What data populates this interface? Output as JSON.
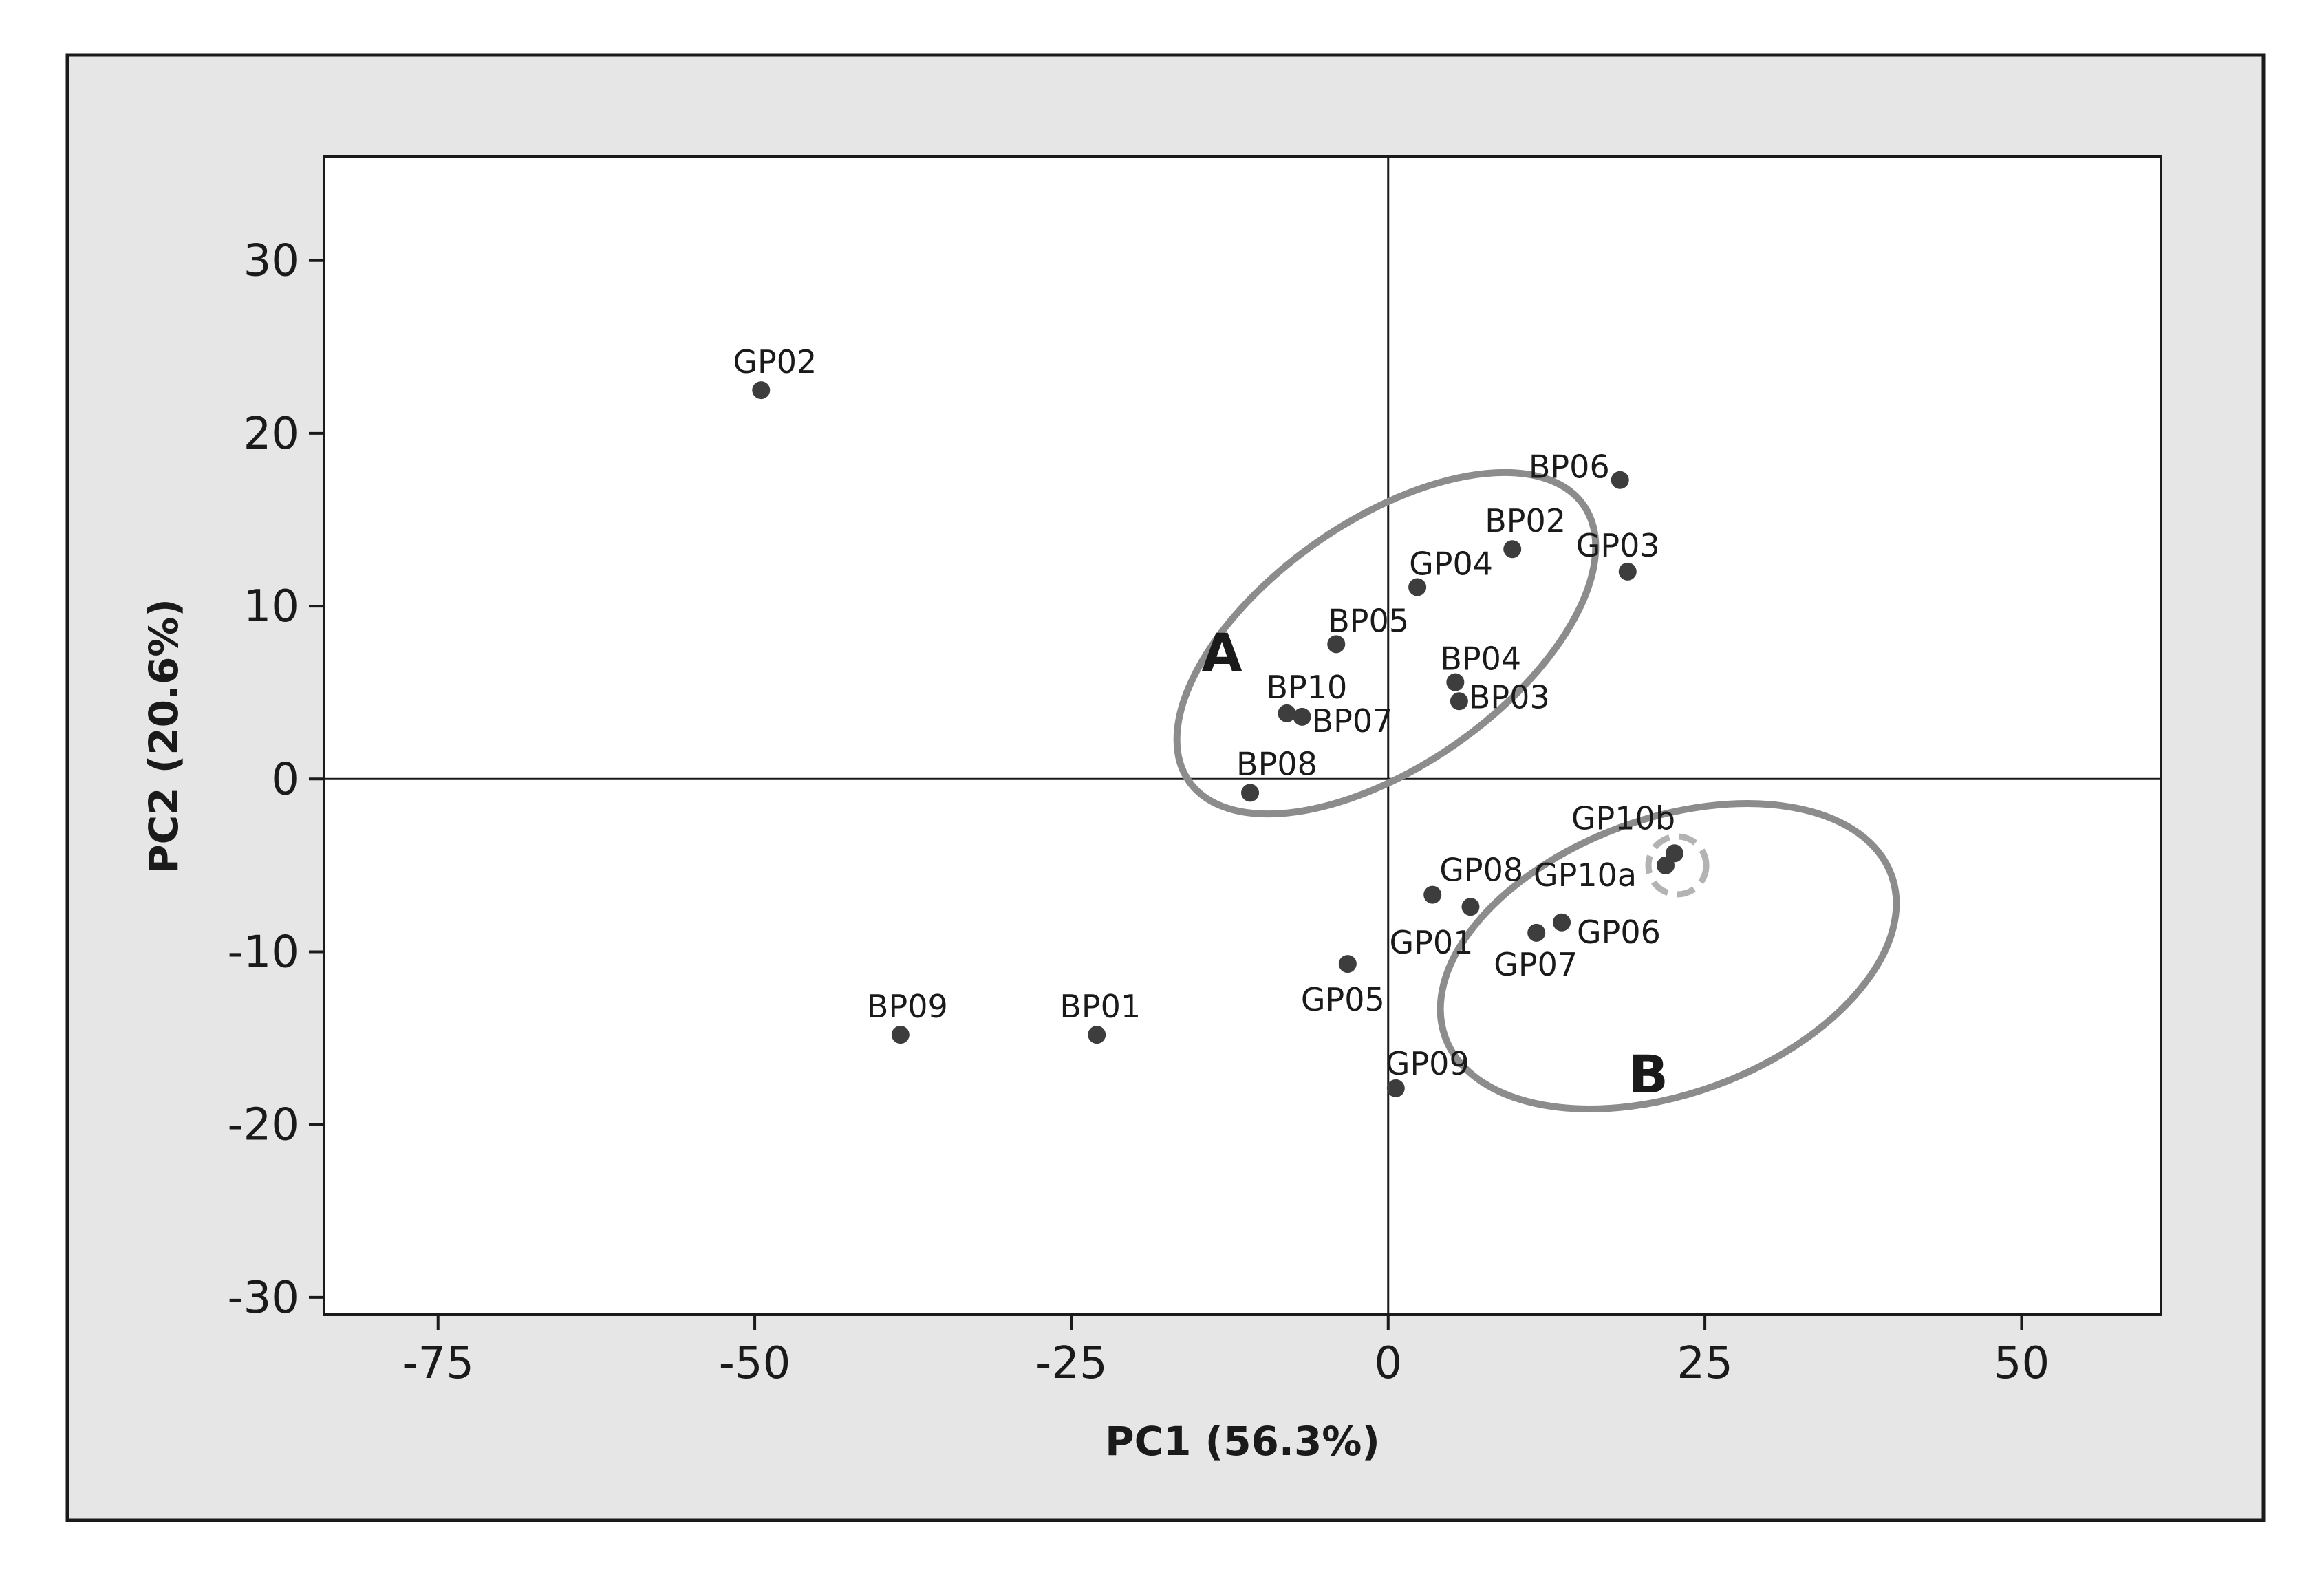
{
  "chart_data": {
    "type": "scatter",
    "title": "",
    "xlabel": "PC1 (56.3%)",
    "ylabel": "PC2 (20.6%)",
    "xlim": [
      -84,
      61
    ],
    "ylim": [
      -31,
      36
    ],
    "xticks": [
      -75,
      -50,
      -25,
      0,
      25,
      50
    ],
    "yticks": [
      -30,
      -20,
      -10,
      0,
      10,
      20,
      30
    ],
    "xtick_labels": [
      "-75",
      "-50",
      "-25",
      "0",
      "25",
      "50"
    ],
    "ytick_labels": [
      "-30",
      "-20",
      "-10",
      "0",
      "10",
      "20",
      "30"
    ],
    "reference_lines": {
      "x": 0,
      "y": 0
    },
    "grid": false,
    "points": [
      {
        "label": "GP02",
        "x": -49.5,
        "y": 22.5
      },
      {
        "label": "BP09",
        "x": -38.5,
        "y": -14.8
      },
      {
        "label": "BP01",
        "x": -23,
        "y": -14.8
      },
      {
        "label": "BP06",
        "x": 18.3,
        "y": 17.3
      },
      {
        "label": "BP02",
        "x": 9.8,
        "y": 13.3
      },
      {
        "label": "GP03",
        "x": 18.9,
        "y": 12.0
      },
      {
        "label": "GP04",
        "x": 2.3,
        "y": 11.1
      },
      {
        "label": "BP05",
        "x": -4.1,
        "y": 7.8
      },
      {
        "label": "BP04",
        "x": 5.3,
        "y": 5.6
      },
      {
        "label": "BP03",
        "x": 5.6,
        "y": 4.5
      },
      {
        "label": "BP10",
        "x": -8,
        "y": 3.8
      },
      {
        "label": "BP07",
        "x": -6.8,
        "y": 3.6
      },
      {
        "label": "BP08",
        "x": -10.9,
        "y": -0.8
      },
      {
        "label": "GP10b",
        "x": 22.6,
        "y": -4.3
      },
      {
        "label": "GP10a",
        "x": 21.9,
        "y": -5.0
      },
      {
        "label": "GP08",
        "x": 3.5,
        "y": -6.7
      },
      {
        "label": "GP01",
        "x": 6.5,
        "y": -7.4
      },
      {
        "label": "GP06",
        "x": 13.7,
        "y": -8.3
      },
      {
        "label": "GP07",
        "x": 11.7,
        "y": -8.9
      },
      {
        "label": "GP05",
        "x": -3.2,
        "y": -10.7
      },
      {
        "label": "GP09",
        "x": 0.6,
        "y": -17.9
      }
    ],
    "groups": [
      {
        "label": "A",
        "members": [
          "BP02",
          "BP03",
          "BP04",
          "BP05",
          "BP06",
          "BP07",
          "BP08",
          "BP10",
          "GP03",
          "GP04"
        ]
      },
      {
        "label": "B",
        "members": [
          "GP01",
          "GP05",
          "GP06",
          "GP07",
          "GP08",
          "GP09",
          "GP10a",
          "GP10b"
        ]
      }
    ],
    "highlight": {
      "members": [
        "GP10a",
        "GP10b"
      ],
      "style": "dashed circle"
    }
  },
  "colors": {
    "frame_background": "#e6e6e6",
    "plot_background": "#ffffff",
    "axis": "#1a1a1a",
    "point": "#3d3d3d",
    "group_ellipse": "#8c8c8c",
    "highlight_circle": "#b3b3b3"
  }
}
